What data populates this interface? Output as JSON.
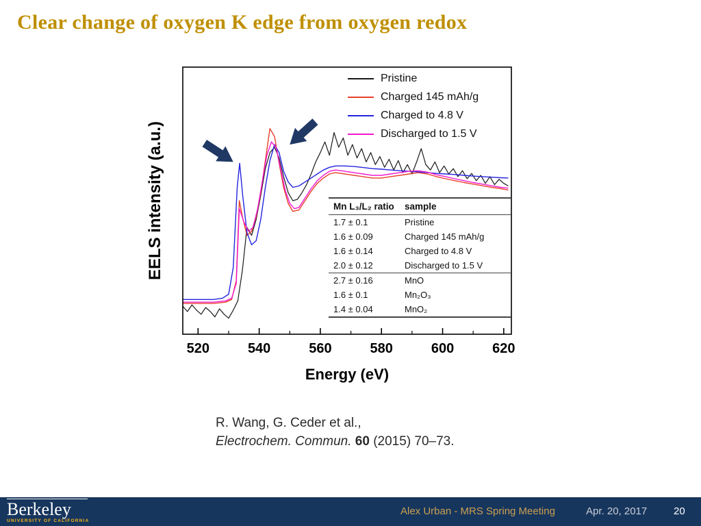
{
  "slide": {
    "title": "Clear change of oxygen K edge from oxygen redox",
    "title_color": "#BF8F00",
    "background_color": "#ffffff"
  },
  "chart_data": {
    "type": "line",
    "title": "",
    "xlabel": "Energy (eV)",
    "ylabel": "EELS intensity (a.u.)",
    "xlim": [
      515,
      622.5
    ],
    "ylim": [
      0,
      1
    ],
    "xticks": [
      520,
      540,
      560,
      580,
      600,
      620
    ],
    "xticks_minor": [
      530,
      550,
      570,
      590,
      610
    ],
    "grid": false,
    "legend_position": "top-right",
    "series": [
      {
        "name": "Pristine",
        "color": "#1a1a1a",
        "width": 1.2,
        "points": [
          [
            515,
            0.105
          ],
          [
            516.5,
            0.085
          ],
          [
            518,
            0.11
          ],
          [
            519.5,
            0.09
          ],
          [
            521,
            0.075
          ],
          [
            522.5,
            0.1
          ],
          [
            524,
            0.085
          ],
          [
            525.5,
            0.065
          ],
          [
            527,
            0.095
          ],
          [
            528.5,
            0.075
          ],
          [
            530,
            0.06
          ],
          [
            531.5,
            0.09
          ],
          [
            533,
            0.125
          ],
          [
            534.5,
            0.24
          ],
          [
            536,
            0.4
          ],
          [
            537.5,
            0.37
          ],
          [
            539,
            0.43
          ],
          [
            540.5,
            0.52
          ],
          [
            542,
            0.62
          ],
          [
            543.5,
            0.68
          ],
          [
            545,
            0.7
          ],
          [
            546.5,
            0.66
          ],
          [
            548,
            0.59
          ],
          [
            549.5,
            0.53
          ],
          [
            551,
            0.5
          ],
          [
            552.5,
            0.505
          ],
          [
            554,
            0.53
          ],
          [
            555.5,
            0.56
          ],
          [
            557,
            0.6
          ],
          [
            558.5,
            0.645
          ],
          [
            560,
            0.68
          ],
          [
            561.5,
            0.72
          ],
          [
            563,
            0.67
          ],
          [
            564.5,
            0.755
          ],
          [
            566,
            0.7
          ],
          [
            567.5,
            0.735
          ],
          [
            569,
            0.67
          ],
          [
            570.5,
            0.71
          ],
          [
            572,
            0.66
          ],
          [
            573.5,
            0.695
          ],
          [
            575,
            0.645
          ],
          [
            576.5,
            0.68
          ],
          [
            578,
            0.635
          ],
          [
            579.5,
            0.665
          ],
          [
            581,
            0.625
          ],
          [
            582.5,
            0.655
          ],
          [
            584,
            0.615
          ],
          [
            585.5,
            0.65
          ],
          [
            587,
            0.605
          ],
          [
            588.5,
            0.635
          ],
          [
            590,
            0.6
          ],
          [
            591.5,
            0.645
          ],
          [
            593,
            0.695
          ],
          [
            594.5,
            0.635
          ],
          [
            596,
            0.615
          ],
          [
            597.5,
            0.645
          ],
          [
            599,
            0.605
          ],
          [
            600.5,
            0.63
          ],
          [
            602,
            0.6
          ],
          [
            603.5,
            0.62
          ],
          [
            605,
            0.59
          ],
          [
            606.5,
            0.612
          ],
          [
            608,
            0.582
          ],
          [
            609.5,
            0.602
          ],
          [
            611,
            0.575
          ],
          [
            612.5,
            0.595
          ],
          [
            614,
            0.565
          ],
          [
            615.5,
            0.59
          ],
          [
            617,
            0.56
          ],
          [
            618.5,
            0.58
          ],
          [
            620,
            0.565
          ],
          [
            621.5,
            0.555
          ]
        ]
      },
      {
        "name": "Charged 145 mAh/g",
        "color": "#E8402A",
        "width": 1.4,
        "points": [
          [
            515,
            0.115
          ],
          [
            520,
            0.115
          ],
          [
            525,
            0.115
          ],
          [
            529,
            0.12
          ],
          [
            531,
            0.13
          ],
          [
            532.5,
            0.2
          ],
          [
            533.5,
            0.5
          ],
          [
            534.5,
            0.44
          ],
          [
            536,
            0.37
          ],
          [
            537.5,
            0.385
          ],
          [
            539,
            0.44
          ],
          [
            540.5,
            0.53
          ],
          [
            542,
            0.65
          ],
          [
            543.5,
            0.77
          ],
          [
            545,
            0.74
          ],
          [
            546.5,
            0.64
          ],
          [
            548,
            0.55
          ],
          [
            549.5,
            0.49
          ],
          [
            551,
            0.46
          ],
          [
            553,
            0.465
          ],
          [
            555,
            0.5
          ],
          [
            557,
            0.535
          ],
          [
            559,
            0.565
          ],
          [
            561,
            0.585
          ],
          [
            563,
            0.6
          ],
          [
            565,
            0.605
          ],
          [
            568,
            0.6
          ],
          [
            571,
            0.595
          ],
          [
            574,
            0.59
          ],
          [
            577,
            0.585
          ],
          [
            580,
            0.585
          ],
          [
            583,
            0.59
          ],
          [
            586,
            0.595
          ],
          [
            589,
            0.6
          ],
          [
            592,
            0.605
          ],
          [
            595,
            0.6
          ],
          [
            598,
            0.59
          ],
          [
            601,
            0.582
          ],
          [
            604,
            0.575
          ],
          [
            607,
            0.568
          ],
          [
            610,
            0.562
          ],
          [
            613,
            0.556
          ],
          [
            616,
            0.55
          ],
          [
            619,
            0.545
          ],
          [
            621.5,
            0.54
          ]
        ]
      },
      {
        "name": "Charged to 4.8 V",
        "color": "#2424DE",
        "width": 1.4,
        "points": [
          [
            515,
            0.13
          ],
          [
            520,
            0.13
          ],
          [
            525,
            0.13
          ],
          [
            528,
            0.135
          ],
          [
            530,
            0.15
          ],
          [
            531.5,
            0.25
          ],
          [
            532.8,
            0.55
          ],
          [
            533.6,
            0.64
          ],
          [
            534.6,
            0.52
          ],
          [
            536,
            0.38
          ],
          [
            537.5,
            0.335
          ],
          [
            539,
            0.35
          ],
          [
            540.5,
            0.43
          ],
          [
            542,
            0.55
          ],
          [
            543.5,
            0.65
          ],
          [
            545,
            0.71
          ],
          [
            546.5,
            0.68
          ],
          [
            548,
            0.61
          ],
          [
            549.5,
            0.57
          ],
          [
            551,
            0.55
          ],
          [
            553,
            0.555
          ],
          [
            555,
            0.57
          ],
          [
            557,
            0.585
          ],
          [
            559,
            0.6
          ],
          [
            561,
            0.615
          ],
          [
            563,
            0.625
          ],
          [
            565,
            0.63
          ],
          [
            568,
            0.63
          ],
          [
            571,
            0.628
          ],
          [
            574,
            0.624
          ],
          [
            577,
            0.62
          ],
          [
            580,
            0.618
          ],
          [
            583,
            0.615
          ],
          [
            586,
            0.612
          ],
          [
            589,
            0.61
          ],
          [
            592,
            0.608
          ],
          [
            595,
            0.605
          ],
          [
            598,
            0.602
          ],
          [
            601,
            0.6
          ],
          [
            604,
            0.598
          ],
          [
            607,
            0.595
          ],
          [
            610,
            0.592
          ],
          [
            613,
            0.59
          ],
          [
            616,
            0.588
          ],
          [
            619,
            0.586
          ],
          [
            621.5,
            0.585
          ]
        ]
      },
      {
        "name": "Discharged to 1.5 V",
        "color": "#F318CF",
        "width": 1.4,
        "points": [
          [
            515,
            0.12
          ],
          [
            520,
            0.12
          ],
          [
            525,
            0.12
          ],
          [
            529,
            0.125
          ],
          [
            531,
            0.135
          ],
          [
            532.5,
            0.19
          ],
          [
            533.5,
            0.47
          ],
          [
            535,
            0.42
          ],
          [
            536.5,
            0.385
          ],
          [
            538,
            0.4
          ],
          [
            539.5,
            0.47
          ],
          [
            541,
            0.57
          ],
          [
            542.5,
            0.67
          ],
          [
            544,
            0.72
          ],
          [
            545.5,
            0.7
          ],
          [
            547,
            0.62
          ],
          [
            548.5,
            0.54
          ],
          [
            550,
            0.49
          ],
          [
            551.5,
            0.47
          ],
          [
            553,
            0.475
          ],
          [
            555,
            0.51
          ],
          [
            557,
            0.545
          ],
          [
            559,
            0.575
          ],
          [
            561,
            0.595
          ],
          [
            563,
            0.61
          ],
          [
            565,
            0.615
          ],
          [
            568,
            0.61
          ],
          [
            571,
            0.605
          ],
          [
            574,
            0.6
          ],
          [
            577,
            0.595
          ],
          [
            580,
            0.595
          ],
          [
            583,
            0.6
          ],
          [
            586,
            0.605
          ],
          [
            589,
            0.61
          ],
          [
            592,
            0.612
          ],
          [
            595,
            0.607
          ],
          [
            598,
            0.597
          ],
          [
            601,
            0.59
          ],
          [
            604,
            0.582
          ],
          [
            607,
            0.575
          ],
          [
            610,
            0.568
          ],
          [
            613,
            0.562
          ],
          [
            616,
            0.556
          ],
          [
            619,
            0.55
          ],
          [
            621.5,
            0.547
          ]
        ]
      }
    ],
    "annotations": [
      {
        "shape": "arrow",
        "tip": [
          531.5,
          0.645
        ],
        "angle_deg": 33,
        "color": "#1F3864"
      },
      {
        "shape": "arrow",
        "tip": [
          550.0,
          0.71
        ],
        "angle_deg": 138,
        "color": "#1F3864"
      }
    ]
  },
  "inset_table": {
    "col1_header": "Mn L₃/L₂ ratio",
    "col2_header": "sample",
    "separator_after_row": 4,
    "rows": [
      [
        "1.7 ± 0.1",
        "Pristine"
      ],
      [
        "1.6 ± 0.09",
        "Charged 145 mAh/g"
      ],
      [
        "1.6 ± 0.14",
        "Charged to 4.8 V"
      ],
      [
        "2.0 ± 0.12",
        "Discharged to 1.5 V"
      ],
      [
        "2.7 ± 0.16",
        "MnO"
      ],
      [
        "1.6 ± 0.1",
        "Mn₂O₃"
      ],
      [
        "1.4 ± 0.04",
        "MnO₂"
      ]
    ]
  },
  "citation": {
    "authors_line": "R. Wang, G. Ceder et al.,",
    "journal_italic": "Electrochem. Commun.",
    "volume_bold": "60",
    "tail": "(2015) 70–73."
  },
  "footer": {
    "bar_color": "#17365D",
    "logo_wordmark": "Berkeley",
    "logo_subtitle": "UNIVERSITY OF CALIFORNIA",
    "logo_subtitle_color": "#FDB515",
    "credit": "Alex Urban - MRS Spring Meeting",
    "credit_color": "#CBA052",
    "date": "Apr. 20, 2017",
    "page_number": "20"
  }
}
